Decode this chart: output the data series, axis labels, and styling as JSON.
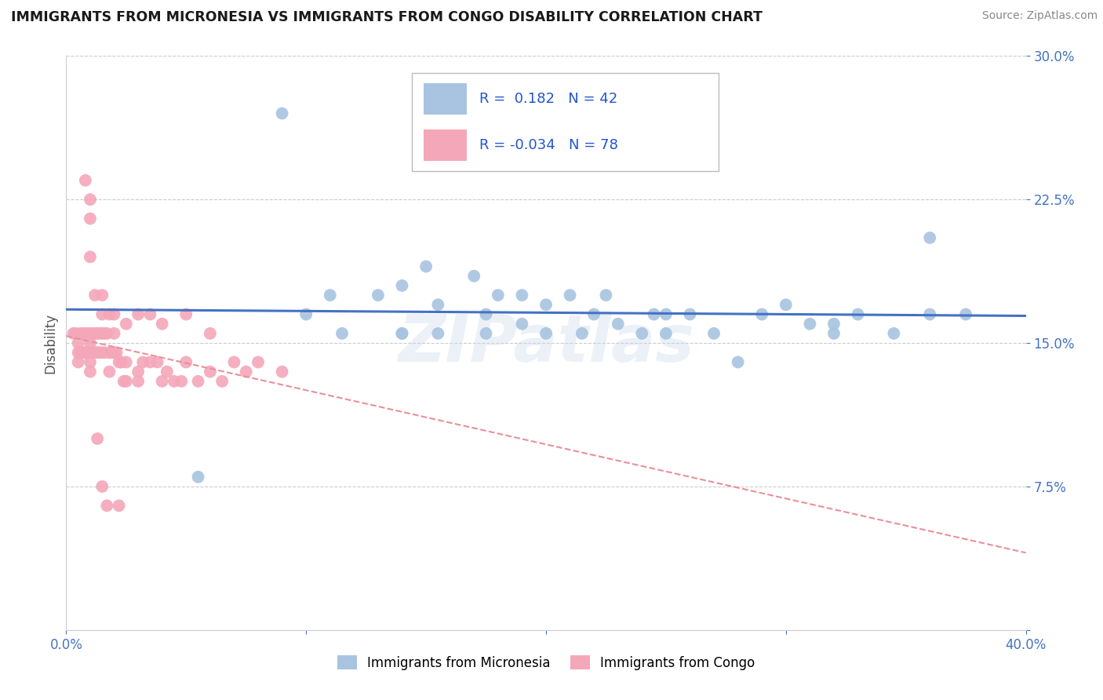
{
  "title": "IMMIGRANTS FROM MICRONESIA VS IMMIGRANTS FROM CONGO DISABILITY CORRELATION CHART",
  "source": "Source: ZipAtlas.com",
  "ylabel": "Disability",
  "xlim": [
    0.0,
    0.4
  ],
  "ylim": [
    0.0,
    0.3
  ],
  "xticks": [
    0.0,
    0.1,
    0.2,
    0.3,
    0.4
  ],
  "yticks": [
    0.0,
    0.075,
    0.15,
    0.225,
    0.3
  ],
  "micronesia_color": "#a8c4e0",
  "congo_color": "#f4a7b9",
  "micronesia_line_color": "#4472c4",
  "congo_line_color": "#e8909a",
  "R_micronesia": 0.182,
  "N_micronesia": 42,
  "R_congo": -0.034,
  "N_congo": 78,
  "legend_micronesia": "Immigrants from Micronesia",
  "legend_congo": "Immigrants from Congo",
  "watermark": "ZIPatlas",
  "background_color": "#ffffff",
  "grid_color": "#cccccc",
  "micronesia_x": [
    0.055,
    0.09,
    0.1,
    0.11,
    0.115,
    0.13,
    0.14,
    0.14,
    0.15,
    0.155,
    0.155,
    0.17,
    0.175,
    0.18,
    0.19,
    0.19,
    0.2,
    0.2,
    0.21,
    0.215,
    0.22,
    0.225,
    0.23,
    0.24,
    0.245,
    0.25,
    0.26,
    0.27,
    0.28,
    0.29,
    0.3,
    0.31,
    0.32,
    0.33,
    0.345,
    0.36,
    0.375,
    0.25,
    0.32,
    0.36,
    0.175,
    0.14
  ],
  "micronesia_y": [
    0.08,
    0.27,
    0.165,
    0.175,
    0.155,
    0.175,
    0.18,
    0.155,
    0.19,
    0.17,
    0.155,
    0.185,
    0.165,
    0.175,
    0.16,
    0.175,
    0.17,
    0.155,
    0.175,
    0.155,
    0.165,
    0.175,
    0.16,
    0.155,
    0.165,
    0.155,
    0.165,
    0.155,
    0.14,
    0.165,
    0.17,
    0.16,
    0.155,
    0.165,
    0.155,
    0.165,
    0.165,
    0.165,
    0.16,
    0.205,
    0.155,
    0.155
  ],
  "congo_x": [
    0.003,
    0.004,
    0.005,
    0.005,
    0.005,
    0.006,
    0.006,
    0.007,
    0.007,
    0.008,
    0.008,
    0.009,
    0.009,
    0.01,
    0.01,
    0.01,
    0.01,
    0.01,
    0.011,
    0.011,
    0.012,
    0.012,
    0.013,
    0.013,
    0.014,
    0.014,
    0.015,
    0.015,
    0.015,
    0.016,
    0.016,
    0.017,
    0.018,
    0.018,
    0.019,
    0.02,
    0.02,
    0.021,
    0.022,
    0.023,
    0.024,
    0.025,
    0.025,
    0.03,
    0.03,
    0.032,
    0.035,
    0.038,
    0.04,
    0.042,
    0.045,
    0.048,
    0.05,
    0.055,
    0.06,
    0.065,
    0.07,
    0.075,
    0.08,
    0.09,
    0.01,
    0.01,
    0.012,
    0.015,
    0.018,
    0.02,
    0.025,
    0.03,
    0.035,
    0.04,
    0.05,
    0.06,
    0.008,
    0.01,
    0.013,
    0.017,
    0.015,
    0.022
  ],
  "congo_y": [
    0.155,
    0.155,
    0.15,
    0.145,
    0.14,
    0.155,
    0.145,
    0.155,
    0.145,
    0.155,
    0.145,
    0.155,
    0.145,
    0.155,
    0.15,
    0.145,
    0.14,
    0.135,
    0.155,
    0.145,
    0.155,
    0.145,
    0.155,
    0.145,
    0.155,
    0.145,
    0.165,
    0.155,
    0.145,
    0.155,
    0.145,
    0.155,
    0.145,
    0.135,
    0.145,
    0.155,
    0.145,
    0.145,
    0.14,
    0.14,
    0.13,
    0.14,
    0.13,
    0.135,
    0.13,
    0.14,
    0.14,
    0.14,
    0.13,
    0.135,
    0.13,
    0.13,
    0.14,
    0.13,
    0.135,
    0.13,
    0.14,
    0.135,
    0.14,
    0.135,
    0.215,
    0.195,
    0.175,
    0.175,
    0.165,
    0.165,
    0.16,
    0.165,
    0.165,
    0.16,
    0.165,
    0.155,
    0.235,
    0.225,
    0.1,
    0.065,
    0.075,
    0.065
  ]
}
